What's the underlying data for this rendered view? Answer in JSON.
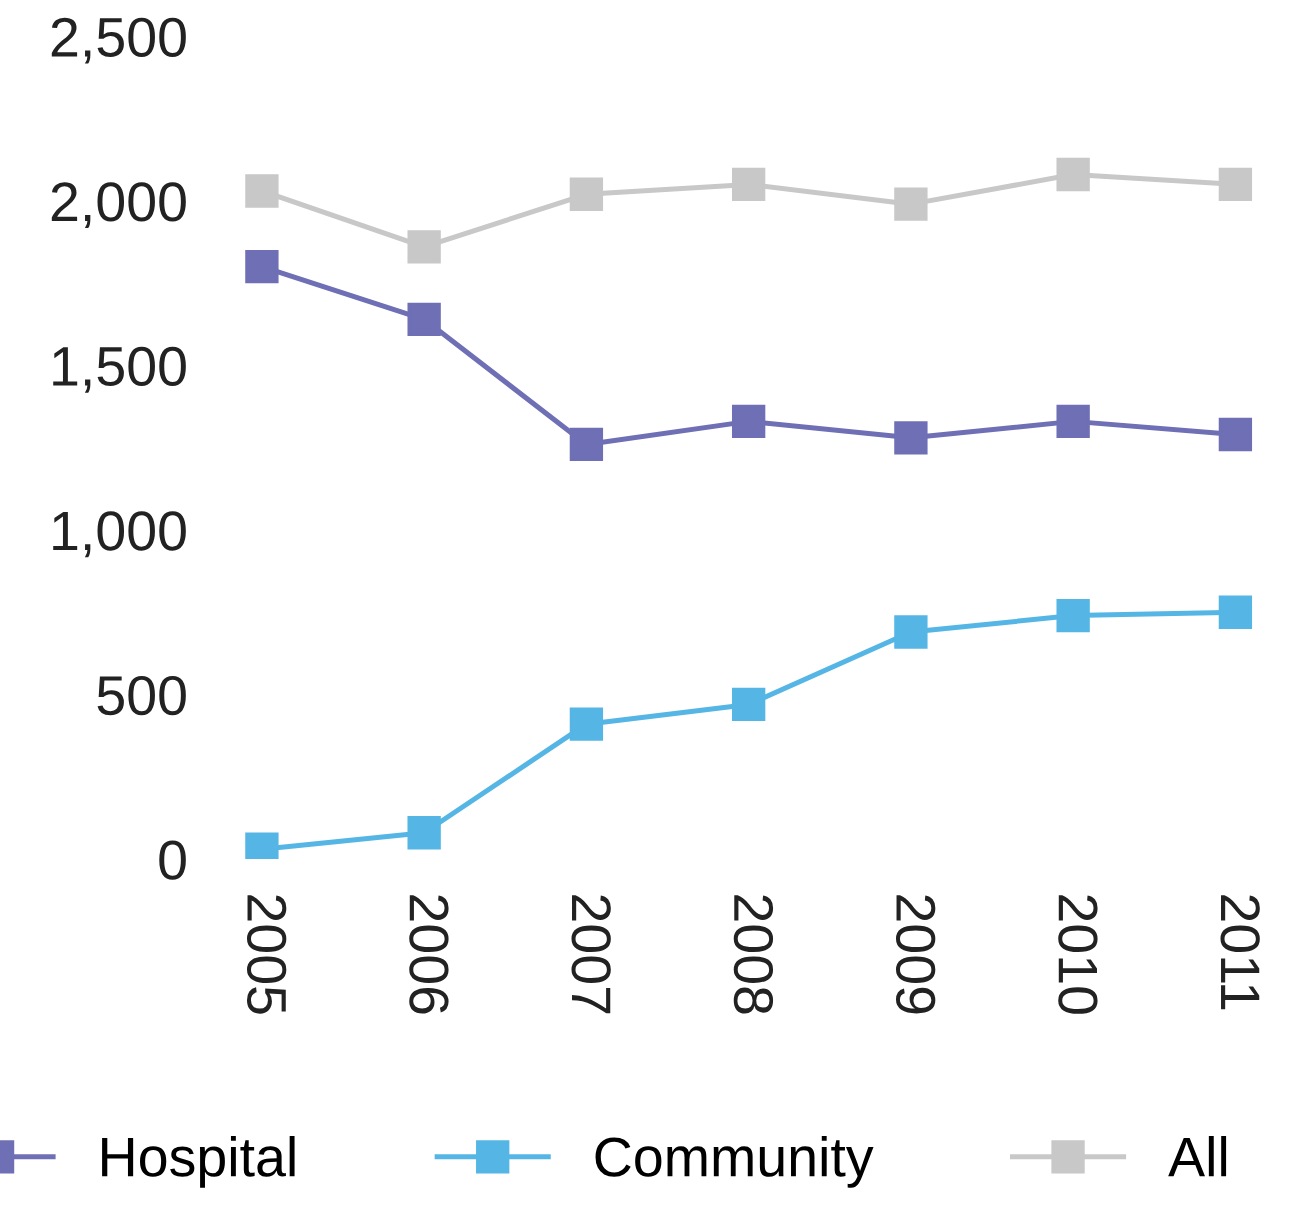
{
  "chart_data": {
    "type": "line",
    "categories": [
      "2005",
      "2006",
      "2007",
      "2008",
      "2009",
      "2010",
      "2011"
    ],
    "series": [
      {
        "name": "Hospital",
        "color": "#6f6fb5",
        "values": [
          1800,
          1640,
          1260,
          1330,
          1280,
          1330,
          1290
        ]
      },
      {
        "name": "Community",
        "color": "#55b6e5",
        "values": [
          30,
          80,
          410,
          470,
          690,
          740,
          750
        ]
      },
      {
        "name": "All",
        "color": "#c8c8c8",
        "values": [
          2030,
          1860,
          2020,
          2050,
          1990,
          2080,
          2050
        ]
      }
    ],
    "ylim": [
      0,
      2500
    ],
    "yticks": [
      0,
      {
        "value": 500,
        "label": "500"
      },
      {
        "value": 1000,
        "label": "1,000"
      },
      {
        "value": 1500,
        "label": "1,500"
      },
      {
        "value": 2000,
        "label": "2,000"
      },
      {
        "value": 2500,
        "label": "2,500"
      }
    ],
    "grid": false,
    "legend": "bottom",
    "marker": "square",
    "line_style": "solid"
  }
}
